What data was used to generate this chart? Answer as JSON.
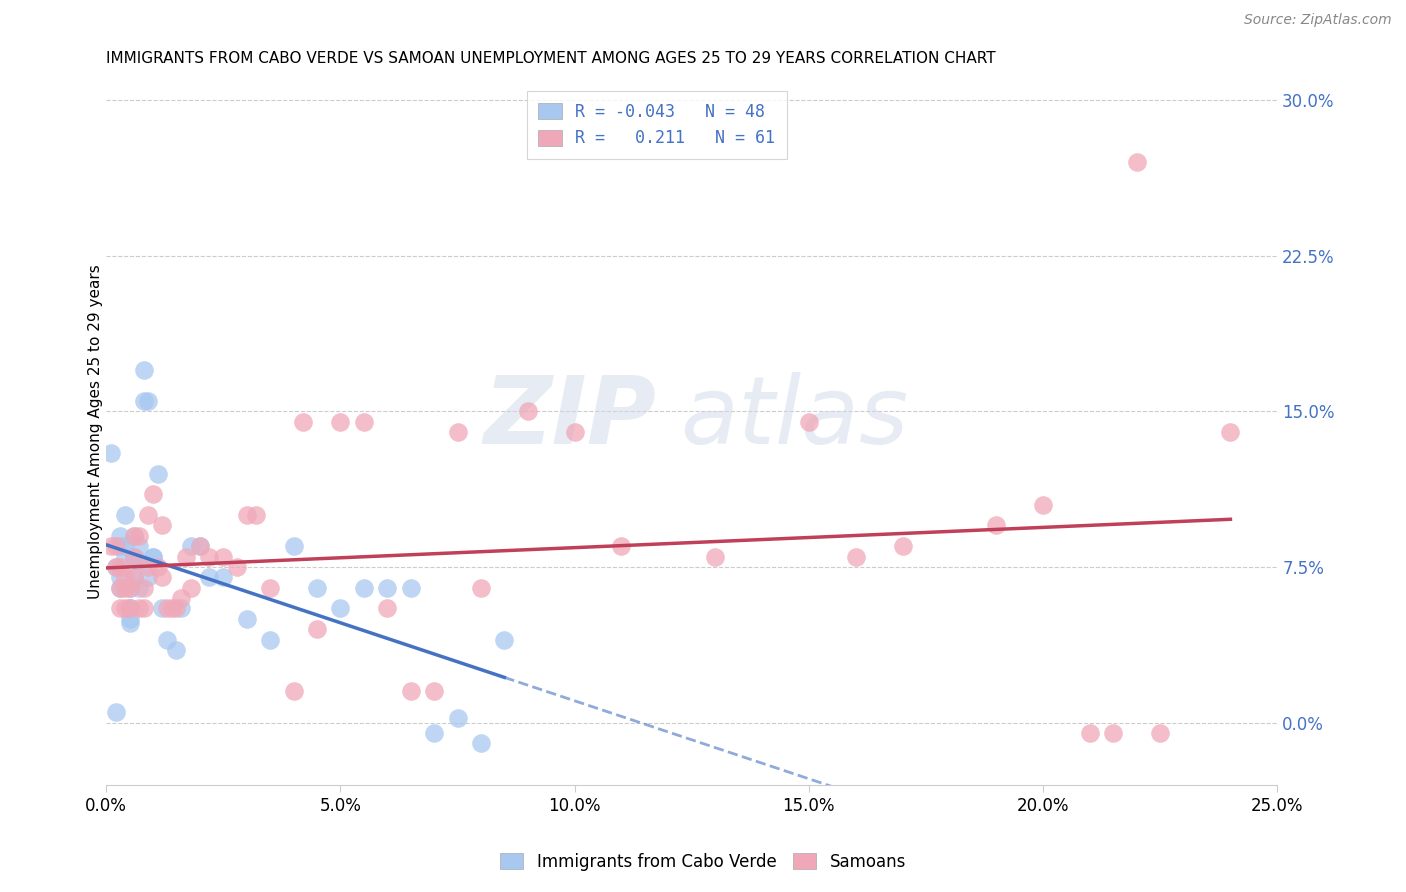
{
  "title": "IMMIGRANTS FROM CABO VERDE VS SAMOAN UNEMPLOYMENT AMONG AGES 25 TO 29 YEARS CORRELATION CHART",
  "source": "Source: ZipAtlas.com",
  "ylabel_label": "Unemployment Among Ages 25 to 29 years",
  "legend_label1": "Immigrants from Cabo Verde",
  "legend_label2": "Samoans",
  "R1": -0.043,
  "N1": 48,
  "R2": 0.211,
  "N2": 61,
  "color1": "#a8c8f0",
  "color2": "#f0a8b8",
  "trendline1_color": "#4472c4",
  "trendline2_color": "#c0405a",
  "background_color": "#ffffff",
  "watermark_zip": "ZIP",
  "watermark_atlas": "atlas",
  "xlim": [
    0.0,
    0.25
  ],
  "ylim": [
    -0.03,
    0.31
  ],
  "yticks": [
    0.0,
    0.075,
    0.15,
    0.225,
    0.3
  ],
  "ytick_labels": [
    "0.0%",
    "7.5%",
    "15.0%",
    "22.5%",
    "30.0%"
  ],
  "xtick_vals": [
    0.0,
    0.05,
    0.1,
    0.15,
    0.2,
    0.25
  ],
  "xtick_labels": [
    "0.0%",
    "5.0%",
    "10.0%",
    "15.0%",
    "20.0%",
    "25.0%"
  ],
  "cabo_verde_x": [
    0.001,
    0.002,
    0.002,
    0.003,
    0.003,
    0.003,
    0.003,
    0.004,
    0.004,
    0.004,
    0.005,
    0.005,
    0.005,
    0.005,
    0.005,
    0.006,
    0.006,
    0.006,
    0.007,
    0.007,
    0.007,
    0.008,
    0.008,
    0.009,
    0.009,
    0.01,
    0.01,
    0.011,
    0.012,
    0.013,
    0.015,
    0.016,
    0.018,
    0.02,
    0.022,
    0.025,
    0.03,
    0.035,
    0.04,
    0.045,
    0.05,
    0.055,
    0.06,
    0.065,
    0.07,
    0.075,
    0.08,
    0.085
  ],
  "cabo_verde_y": [
    0.13,
    0.005,
    0.075,
    0.085,
    0.09,
    0.07,
    0.065,
    0.08,
    0.085,
    0.1,
    0.065,
    0.05,
    0.055,
    0.055,
    0.048,
    0.08,
    0.09,
    0.07,
    0.085,
    0.078,
    0.065,
    0.17,
    0.155,
    0.155,
    0.07,
    0.08,
    0.08,
    0.12,
    0.055,
    0.04,
    0.035,
    0.055,
    0.085,
    0.085,
    0.07,
    0.07,
    0.05,
    0.04,
    0.085,
    0.065,
    0.055,
    0.065,
    0.065,
    0.065,
    -0.005,
    0.002,
    -0.01,
    0.04
  ],
  "samoan_x": [
    0.001,
    0.002,
    0.002,
    0.003,
    0.003,
    0.003,
    0.004,
    0.004,
    0.004,
    0.005,
    0.005,
    0.006,
    0.006,
    0.006,
    0.007,
    0.007,
    0.008,
    0.008,
    0.009,
    0.009,
    0.01,
    0.011,
    0.012,
    0.012,
    0.013,
    0.014,
    0.015,
    0.016,
    0.017,
    0.018,
    0.02,
    0.022,
    0.025,
    0.028,
    0.03,
    0.032,
    0.035,
    0.04,
    0.042,
    0.045,
    0.05,
    0.055,
    0.06,
    0.065,
    0.07,
    0.075,
    0.08,
    0.09,
    0.1,
    0.11,
    0.13,
    0.15,
    0.16,
    0.17,
    0.19,
    0.2,
    0.21,
    0.215,
    0.22,
    0.225,
    0.24
  ],
  "samoan_y": [
    0.085,
    0.075,
    0.085,
    0.075,
    0.055,
    0.065,
    0.07,
    0.055,
    0.065,
    0.055,
    0.065,
    0.09,
    0.07,
    0.08,
    0.055,
    0.09,
    0.065,
    0.055,
    0.075,
    0.1,
    0.11,
    0.075,
    0.095,
    0.07,
    0.055,
    0.055,
    0.055,
    0.06,
    0.08,
    0.065,
    0.085,
    0.08,
    0.08,
    0.075,
    0.1,
    0.1,
    0.065,
    0.015,
    0.145,
    0.045,
    0.145,
    0.145,
    0.055,
    0.015,
    0.015,
    0.14,
    0.065,
    0.15,
    0.14,
    0.085,
    0.08,
    0.145,
    0.08,
    0.085,
    0.095,
    0.105,
    -0.005,
    -0.005,
    0.27,
    -0.005,
    0.14
  ]
}
